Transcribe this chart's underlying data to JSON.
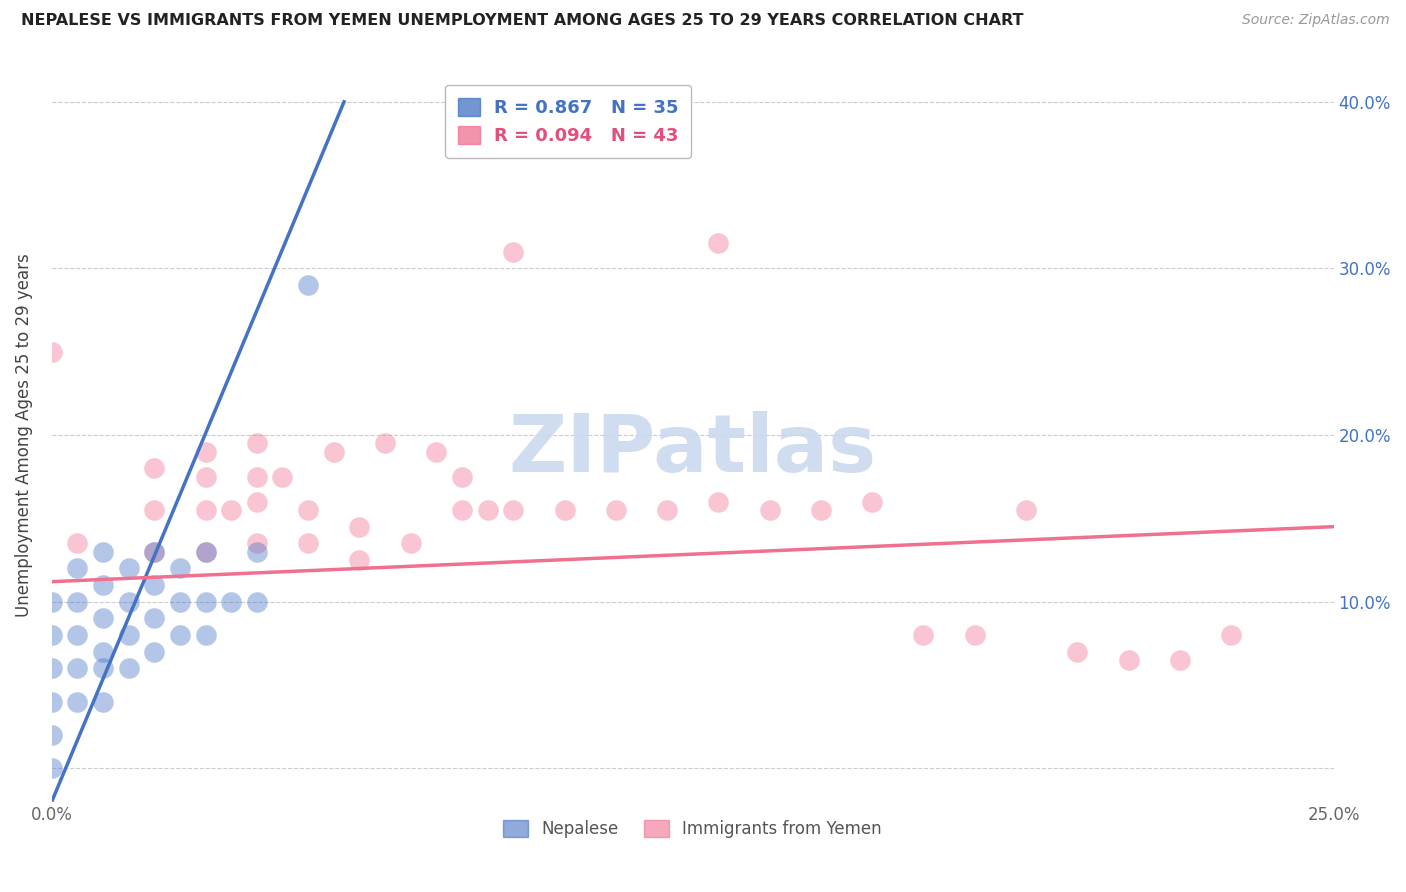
{
  "title": "NEPALESE VS IMMIGRANTS FROM YEMEN UNEMPLOYMENT AMONG AGES 25 TO 29 YEARS CORRELATION CHART",
  "source": "Source: ZipAtlas.com",
  "ylabel": "Unemployment Among Ages 25 to 29 years",
  "xlim": [
    0.0,
    0.25
  ],
  "ylim": [
    -0.02,
    0.42
  ],
  "x_tick_positions": [
    0.0,
    0.05,
    0.1,
    0.15,
    0.2,
    0.25
  ],
  "x_tick_labels": [
    "0.0%",
    "",
    "",
    "",
    "",
    "25.0%"
  ],
  "y_tick_positions": [
    0.0,
    0.1,
    0.2,
    0.3,
    0.4
  ],
  "y_tick_labels_right": [
    "",
    "10.0%",
    "20.0%",
    "30.0%",
    "40.0%"
  ],
  "blue_color": "#4472C4",
  "pink_color": "#F07090",
  "watermark_text": "ZIPatlas",
  "legend1_label": "R = 0.867   N = 35",
  "legend2_label": "R = 0.094   N = 43",
  "bottom_legend1": "Nepalese",
  "bottom_legend2": "Immigrants from Yemen",
  "blue_scatter_x": [
    0.0,
    0.0,
    0.0,
    0.0,
    0.0,
    0.0,
    0.005,
    0.005,
    0.005,
    0.005,
    0.005,
    0.01,
    0.01,
    0.01,
    0.01,
    0.01,
    0.01,
    0.015,
    0.015,
    0.015,
    0.015,
    0.02,
    0.02,
    0.02,
    0.02,
    0.025,
    0.025,
    0.025,
    0.03,
    0.03,
    0.03,
    0.035,
    0.04,
    0.04,
    0.05
  ],
  "blue_scatter_y": [
    0.0,
    0.02,
    0.04,
    0.06,
    0.08,
    0.1,
    0.04,
    0.06,
    0.08,
    0.1,
    0.12,
    0.04,
    0.06,
    0.07,
    0.09,
    0.11,
    0.13,
    0.06,
    0.08,
    0.1,
    0.12,
    0.07,
    0.09,
    0.11,
    0.13,
    0.08,
    0.1,
    0.12,
    0.08,
    0.1,
    0.13,
    0.1,
    0.1,
    0.13,
    0.29
  ],
  "pink_scatter_x": [
    0.0,
    0.005,
    0.02,
    0.02,
    0.02,
    0.03,
    0.03,
    0.03,
    0.03,
    0.04,
    0.04,
    0.04,
    0.04,
    0.05,
    0.05,
    0.06,
    0.06,
    0.07,
    0.08,
    0.09,
    0.1,
    0.11,
    0.12,
    0.13,
    0.14,
    0.15,
    0.16,
    0.17,
    0.18,
    0.19,
    0.2,
    0.21,
    0.22,
    0.23,
    0.13,
    0.08,
    0.09,
    0.035,
    0.045,
    0.055,
    0.065,
    0.075,
    0.085
  ],
  "pink_scatter_y": [
    0.25,
    0.135,
    0.13,
    0.155,
    0.18,
    0.13,
    0.155,
    0.175,
    0.19,
    0.135,
    0.16,
    0.175,
    0.195,
    0.135,
    0.155,
    0.125,
    0.145,
    0.135,
    0.155,
    0.155,
    0.155,
    0.155,
    0.155,
    0.16,
    0.155,
    0.155,
    0.16,
    0.08,
    0.08,
    0.155,
    0.07,
    0.065,
    0.065,
    0.08,
    0.315,
    0.175,
    0.31,
    0.155,
    0.175,
    0.19,
    0.195,
    0.19,
    0.155
  ],
  "blue_line_x": [
    0.0,
    0.057
  ],
  "blue_line_y": [
    -0.02,
    0.4
  ],
  "pink_line_x": [
    0.0,
    0.25
  ],
  "pink_line_y": [
    0.112,
    0.145
  ]
}
